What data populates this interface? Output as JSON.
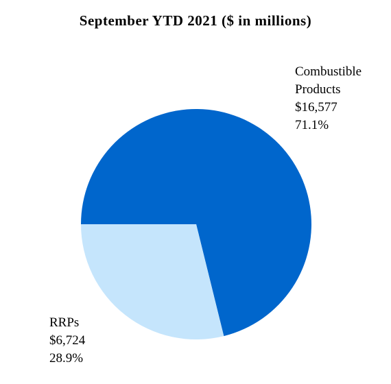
{
  "chart_data": {
    "type": "pie",
    "title": "September YTD 2021 ($ in millions)",
    "slices": [
      {
        "name": "Combustible Products",
        "name_lines": [
          "Combustible",
          "Products"
        ],
        "value_label": "$16,577",
        "value": 16577,
        "percent_label": "71.1%",
        "percent": 71.1,
        "color": "#0066CC"
      },
      {
        "name": "RRPs",
        "name_lines": [
          "RRPs"
        ],
        "value_label": "$6,724",
        "value": 6724,
        "percent_label": "28.9%",
        "percent": 28.9,
        "color": "#C5E5FC"
      }
    ]
  }
}
